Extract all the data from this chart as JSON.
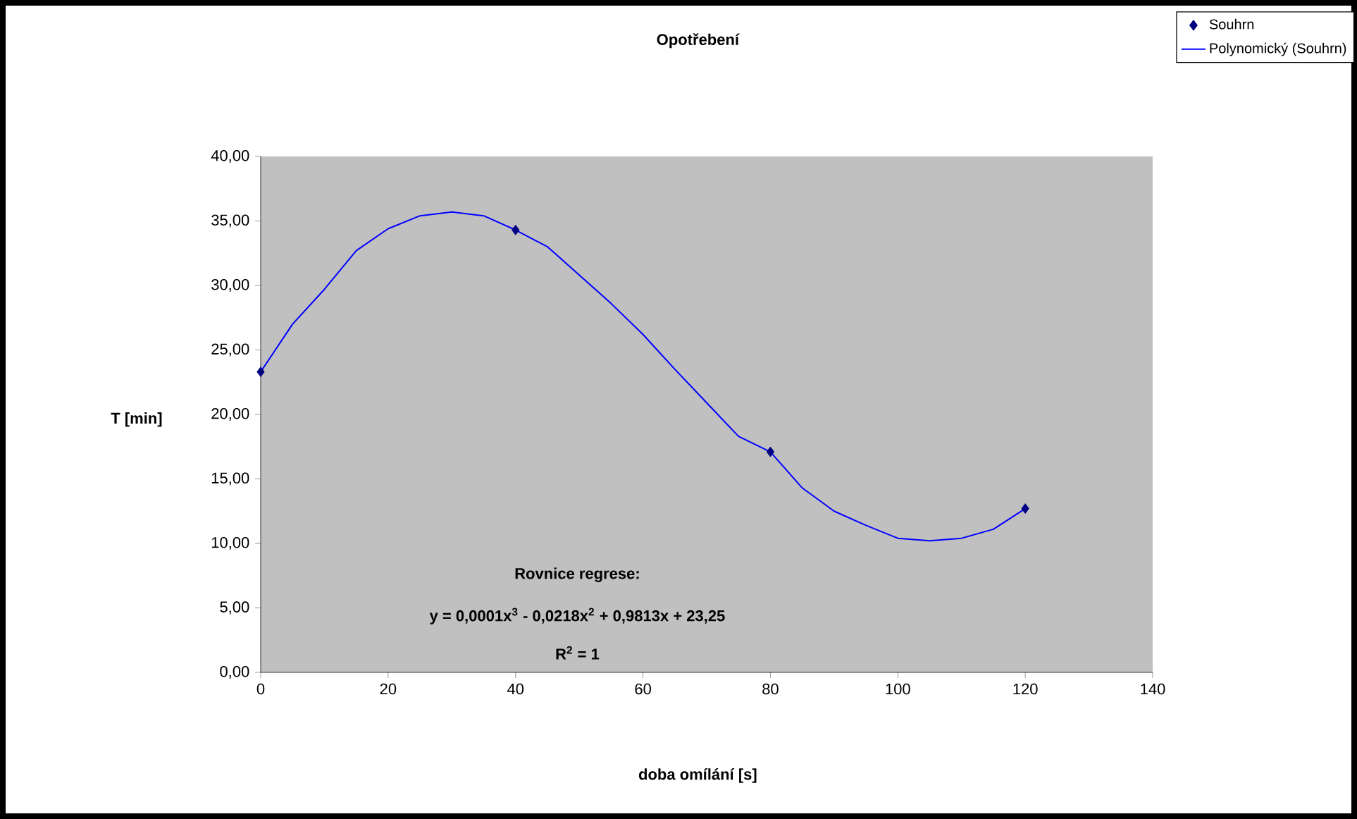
{
  "chart_data": {
    "type": "scatter",
    "title": "Opotřebení",
    "xlabel": "doba omílání [s]",
    "ylabel": "T [min]",
    "xlim": [
      0,
      140
    ],
    "xticks": [
      0,
      20,
      40,
      60,
      80,
      100,
      120,
      140
    ],
    "ylim": [
      0,
      40
    ],
    "yticks": [
      {
        "value": 0,
        "label": "0,00"
      },
      {
        "value": 5,
        "label": "5,00"
      },
      {
        "value": 10,
        "label": "10,00"
      },
      {
        "value": 15,
        "label": "15,00"
      },
      {
        "value": 20,
        "label": "20,00"
      },
      {
        "value": 25,
        "label": "25,00"
      },
      {
        "value": 30,
        "label": "30,00"
      },
      {
        "value": 35,
        "label": "35,00"
      },
      {
        "value": 40,
        "label": "40,00"
      }
    ],
    "grid": false,
    "legend": "top right",
    "annotations": [
      "Rovnice regrese:",
      "y = 0,0001x$^{3}$ - 0,0218x$^{2}$ + 0,9813x + 23,25",
      "R$^{2}$ = 1"
    ],
    "series": [
      {
        "name": "Souhrn",
        "marker": "diamond",
        "color": "#000080",
        "x": [
          0,
          40,
          80,
          120
        ],
        "values": [
          23.3,
          34.3,
          17.1,
          12.7
        ]
      },
      {
        "name": "Polynomický (Souhrn)",
        "type": "line",
        "marker": "none",
        "color": "#0000ff",
        "x": [
          0,
          5,
          10,
          15,
          20,
          25,
          30,
          35,
          40,
          45,
          50,
          55,
          60,
          65,
          70,
          75,
          80,
          85,
          90,
          95,
          100,
          105,
          110,
          115,
          120
        ],
        "values": [
          23.3,
          27.0,
          29.7,
          32.7,
          34.4,
          35.4,
          35.7,
          35.4,
          34.3,
          33.0,
          30.8,
          28.6,
          26.2,
          23.5,
          20.9,
          18.3,
          17.1,
          14.3,
          12.5,
          11.4,
          10.4,
          10.2,
          10.4,
          11.1,
          12.7
        ]
      }
    ]
  }
}
